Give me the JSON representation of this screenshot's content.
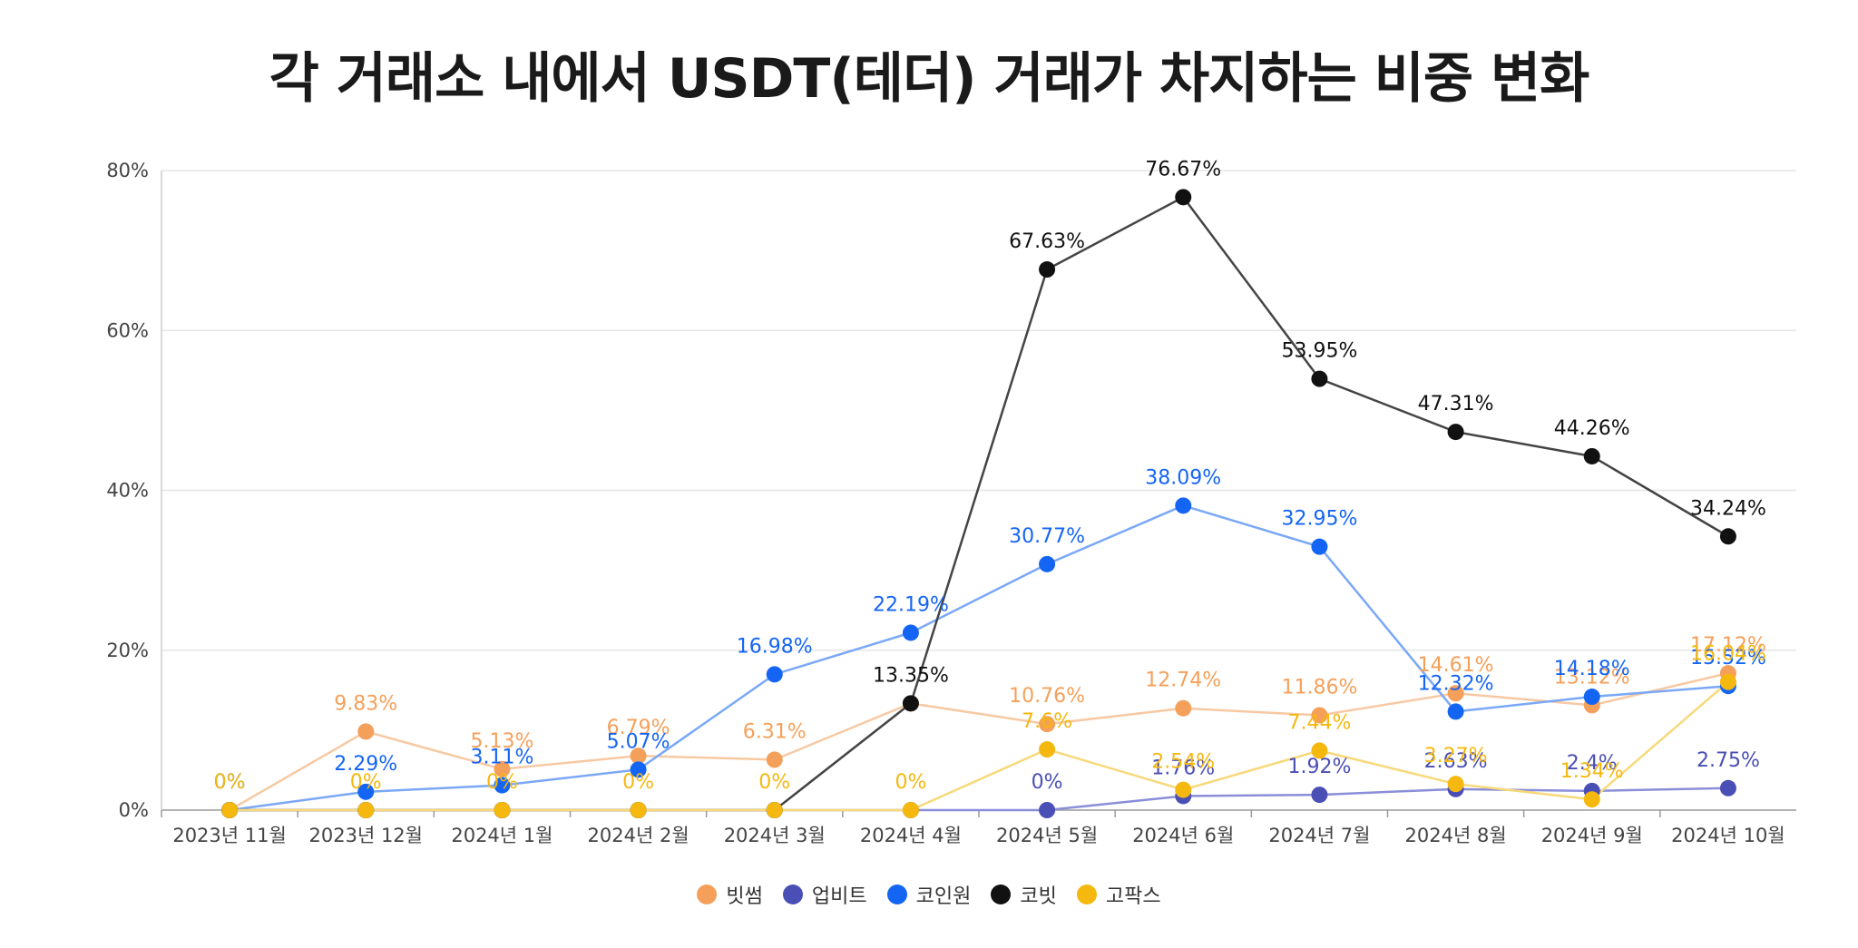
{
  "chart_data": {
    "type": "line",
    "title": "각 거래소 내에서 USDT(테더) 거래가 차지하는 비중 변화",
    "categories": [
      "2023년 11월",
      "2023년 12월",
      "2024년 1월",
      "2024년 2월",
      "2024년 3월",
      "2024년 4월",
      "2024년 5월",
      "2024년 6월",
      "2024년 7월",
      "2024년 8월",
      "2024년 9월",
      "2024년 10월"
    ],
    "y_ticks": [
      "0%",
      "20%",
      "40%",
      "60%",
      "80%"
    ],
    "ylim": [
      0,
      80
    ],
    "grid": true,
    "legend_position": "bottom",
    "series": [
      {
        "name": "빗썸",
        "color": "#f5a05a",
        "line_color": "#f7c9a3",
        "values": [
          0,
          9.83,
          5.13,
          6.79,
          6.31,
          13.35,
          10.76,
          12.74,
          11.86,
          14.61,
          13.12,
          17.12
        ],
        "labels": [
          "",
          "9.83%",
          "5.13%",
          "6.79%",
          "6.31%",
          "",
          "10.76%",
          "12.74%",
          "11.86%",
          "14.61%",
          "13.12%",
          "17.12%"
        ]
      },
      {
        "name": "업비트",
        "color": "#4a4fb5",
        "line_color": "#8a8ed8",
        "values": [
          0,
          0,
          0,
          0,
          0,
          0,
          0,
          1.76,
          1.92,
          2.63,
          2.4,
          2.75
        ],
        "labels": [
          "",
          "",
          "",
          "",
          "",
          "",
          "0%",
          "1.76%",
          "1.92%",
          "2.63%",
          "2.4%",
          "2.75%"
        ]
      },
      {
        "name": "코인원",
        "color": "#1565f5",
        "line_color": "#7aa8f7",
        "values": [
          0,
          2.29,
          3.11,
          5.07,
          16.98,
          22.19,
          30.77,
          38.09,
          32.95,
          12.32,
          14.18,
          15.52
        ],
        "labels": [
          "0%",
          "2.29%",
          "3.11%",
          "5.07%",
          "16.98%",
          "22.19%",
          "30.77%",
          "38.09%",
          "32.95%",
          "12.32%",
          "14.18%",
          "15.52%"
        ]
      },
      {
        "name": "코빗",
        "color": "#111111",
        "line_color": "#444444",
        "values": [
          0,
          0,
          0,
          0,
          0,
          13.35,
          67.63,
          76.67,
          53.95,
          47.31,
          44.26,
          34.24
        ],
        "labels": [
          "",
          "",
          "",
          "",
          "",
          "13.35%",
          "67.63%",
          "76.67%",
          "53.95%",
          "47.31%",
          "44.26%",
          "34.24%"
        ]
      },
      {
        "name": "고팍스",
        "color": "#f5b80f",
        "line_color": "#f7d97a",
        "values": [
          0,
          0,
          0,
          0,
          0,
          0,
          7.6,
          2.54,
          7.44,
          3.27,
          1.34,
          16.04
        ],
        "labels": [
          "0%",
          "0%",
          "0%",
          "0%",
          "0%",
          "0%",
          "7.6%",
          "2.54%",
          "7.44%",
          "3.27%",
          "1.34%",
          "16.04%"
        ]
      }
    ]
  }
}
